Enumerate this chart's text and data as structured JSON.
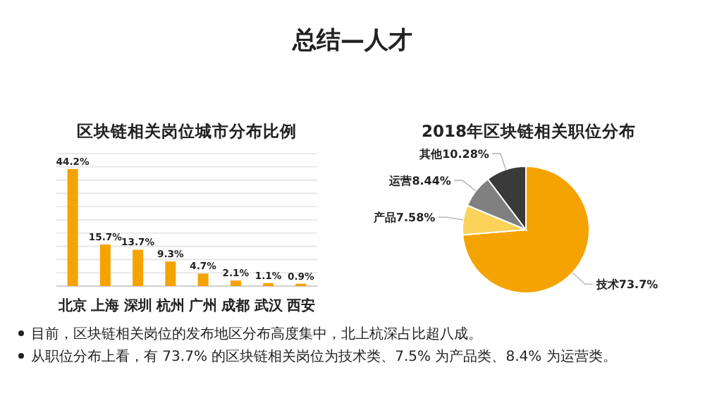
{
  "chart_data": [
    {
      "type": "bar",
      "title": "区块链相关岗位城市分布比例",
      "categories": [
        "北京",
        "上海",
        "深圳",
        "杭州",
        "广州",
        "成都",
        "武汉",
        "西安"
      ],
      "values": [
        44.2,
        15.7,
        13.7,
        9.3,
        4.7,
        2.1,
        1.1,
        0.9
      ],
      "value_labels": [
        "44.2%",
        "15.7%",
        "13.7%",
        "9.3%",
        "4.7%",
        "2.1%",
        "1.1%",
        "0.9%"
      ],
      "color": "#f5a300",
      "ylim": [
        0,
        50
      ],
      "yticks": [
        {
          "value": 0,
          "label": null
        },
        {
          "value": 5,
          "label": null
        },
        {
          "value": 10,
          "label": null
        },
        {
          "value": 15,
          "label": null
        },
        {
          "value": 20,
          "label": null
        },
        {
          "value": 25,
          "label": null
        },
        {
          "value": 30,
          "label": null
        },
        {
          "value": 35,
          "label": null
        },
        {
          "value": 40,
          "label": null
        },
        {
          "value": 45,
          "label": null
        },
        {
          "value": 50,
          "label": null
        }
      ],
      "grid": "y",
      "tick_labels": "x",
      "annotations": [
        "总结—人才",
        "目前，区块链相关岗位的发布地区分布高度集中，北上杭深占比超八成。",
        "从职位分布上看，有 73.7% 的区块链相关岗位为技术类、7.5% 为产品类、8.4% 为运营类。"
      ]
    },
    {
      "type": "pie",
      "title": "2018年区块链相关职位分布",
      "categories": [
        "技术",
        "产品",
        "运营",
        "其他"
      ],
      "values": [
        73.7,
        7.58,
        8.44,
        10.28
      ],
      "value_labels": [
        "73.7%",
        "7.58%",
        "8.44%",
        "10.28%"
      ],
      "colors": [
        "#f5a300",
        "#fbd35a",
        "#808080",
        "#3a3a3a"
      ]
    }
  ]
}
